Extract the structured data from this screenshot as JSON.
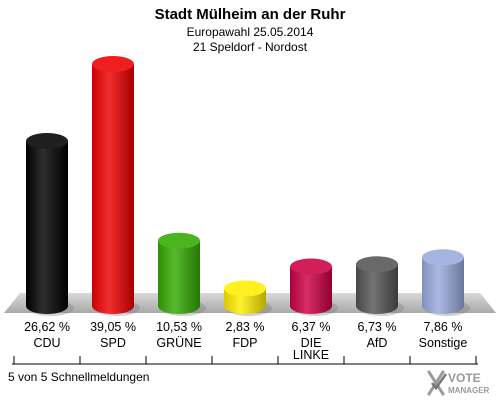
{
  "header": {
    "title": "Stadt Mülheim an der Ruhr",
    "subtitle": "Europawahl 25.05.2014",
    "district": "21 Speldorf - Nordost"
  },
  "footer": {
    "caption": "5 von 5 Schnellmeldungen",
    "logo_line1": "VOTE",
    "logo_line2": "MANAGER"
  },
  "chart_data": {
    "type": "bar",
    "title": "Stadt Mülheim an der Ruhr",
    "categories": [
      "CDU",
      "SPD",
      "GRÜNE",
      "FDP",
      "DIE LINKE",
      "AfD",
      "Sonstige"
    ],
    "category_lines": [
      [
        "CDU"
      ],
      [
        "SPD"
      ],
      [
        "GRÜNE"
      ],
      [
        "FDP"
      ],
      [
        "DIE",
        "LINKE"
      ],
      [
        "AfD"
      ],
      [
        "Sonstige"
      ]
    ],
    "values": [
      26.62,
      39.05,
      10.53,
      2.83,
      6.37,
      6.73,
      7.86
    ],
    "value_labels": [
      "26,62 %",
      "39,05 %",
      "10,53 %",
      "2,83 %",
      "6,37 %",
      "6,73 %",
      "7,86 %"
    ],
    "colors": [
      "#000000",
      "#ee0000",
      "#33aa00",
      "#ffee00",
      "#cc0044",
      "#555555",
      "#99aadd"
    ],
    "ylim": [
      0,
      39.05
    ],
    "grid": false,
    "legend": "none"
  }
}
